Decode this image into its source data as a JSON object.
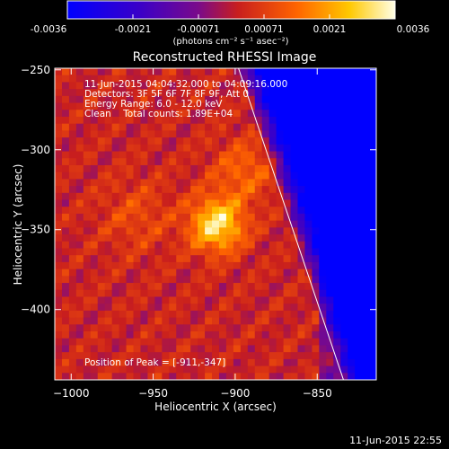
{
  "colorbar": {
    "tick_labels": [
      "-0.0036",
      "-0.0021",
      "-0.00071",
      "0.00071",
      "0.0021",
      "0.0036"
    ],
    "range": [
      -0.0036,
      0.0036
    ],
    "units_label": "(photons cm⁻² s⁻¹ asec⁻²)",
    "colormap": "blue-purple-red-orange-yellow-white"
  },
  "plot": {
    "title": "Reconstructed RHESSI Image",
    "info_lines": [
      "11-Jun-2015 04:04:32.000 to 04:09:16.000",
      "Detectors: 3F 5F 6F 7F 8F 9F, Att 0",
      "Energy Range: 6.0 - 12.0 keV",
      "Clean    Total counts: 1.89E+04"
    ],
    "peak_label": "Position of Peak = [-911,-347]",
    "xlabel": "Heliocentric X (arcsec)",
    "ylabel": "Heliocentric Y (arcsec)"
  },
  "footer_stamp": "11-Jun-2015 22:55",
  "chart_data": {
    "type": "heatmap",
    "title": "Reconstructed RHESSI Image",
    "xlabel": "Heliocentric X (arcsec)",
    "ylabel": "Heliocentric Y (arcsec)",
    "xlim": [
      -1010,
      -814
    ],
    "ylim": [
      -444,
      -249
    ],
    "xticks": [
      -1000,
      -950,
      -900,
      -850
    ],
    "xtick_labels": [
      "−1000",
      "−950",
      "−900",
      "−850"
    ],
    "yticks": [
      -400,
      -350,
      -300,
      -250
    ],
    "ytick_labels": [
      "−400",
      "−350",
      "−300",
      "−250"
    ],
    "peak": {
      "x": -911,
      "y": -347,
      "value": 0.0036
    },
    "limb_line": [
      [
        -898,
        -249
      ],
      [
        -834,
        -444
      ]
    ],
    "colorbar_range": [
      -0.0036,
      0.0036
    ]
  }
}
